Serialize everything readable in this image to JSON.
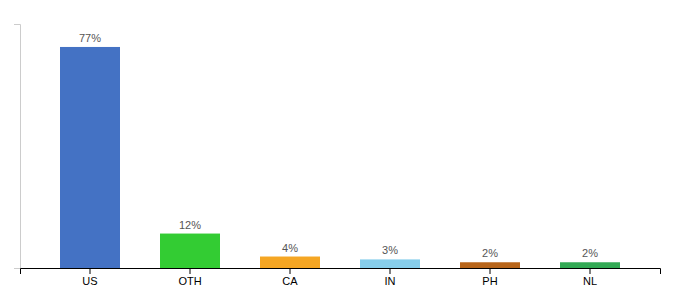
{
  "chart_data": {
    "type": "bar",
    "categories": [
      "US",
      "OTH",
      "CA",
      "IN",
      "PH",
      "NL"
    ],
    "values": [
      77,
      12,
      4,
      3,
      2,
      2
    ],
    "value_labels": [
      "77%",
      "12%",
      "4%",
      "3%",
      "2%",
      "2%"
    ],
    "colors": [
      "#4472c4",
      "#33cc33",
      "#f5a623",
      "#87ceeb",
      "#b8651a",
      "#33aa55"
    ],
    "ylim": [
      0,
      85
    ],
    "data_labels": true,
    "tick_labels": "x",
    "grid": false
  }
}
